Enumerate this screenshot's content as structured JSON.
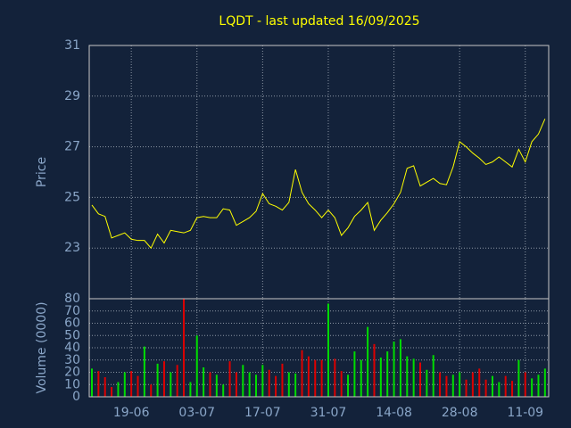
{
  "chart_data": {
    "type": "stock",
    "title": "LQDT - last updated 16/09/2025",
    "categories": [
      null,
      null,
      null,
      null,
      null,
      null,
      "19-06",
      null,
      null,
      null,
      null,
      null,
      null,
      null,
      null,
      null,
      "03-07",
      null,
      null,
      null,
      null,
      null,
      null,
      null,
      null,
      null,
      "17-07",
      null,
      null,
      null,
      null,
      null,
      null,
      null,
      null,
      null,
      "31-07",
      null,
      null,
      null,
      null,
      null,
      null,
      null,
      null,
      null,
      "14-08",
      null,
      null,
      null,
      null,
      null,
      null,
      null,
      null,
      null,
      "28-08",
      null,
      null,
      null,
      null,
      null,
      null,
      null,
      null,
      null,
      "11-09",
      null,
      null,
      null
    ],
    "price": {
      "color": "#ffff00",
      "values": [
        24.7,
        24.35,
        24.25,
        23.4,
        23.5,
        23.6,
        23.35,
        23.3,
        23.3,
        23.0,
        23.55,
        23.2,
        23.7,
        23.65,
        23.6,
        23.7,
        24.2,
        24.25,
        24.2,
        24.2,
        24.55,
        24.5,
        23.9,
        24.05,
        24.2,
        24.45,
        25.15,
        24.75,
        24.65,
        24.5,
        24.8,
        26.1,
        25.2,
        24.75,
        24.5,
        24.2,
        24.5,
        24.2,
        23.5,
        23.8,
        24.25,
        24.5,
        24.8,
        23.7,
        24.1,
        24.4,
        24.75,
        25.2,
        26.15,
        26.25,
        25.45,
        25.6,
        25.75,
        25.55,
        25.5,
        26.2,
        27.2,
        27.0,
        26.75,
        26.55,
        26.3,
        26.4,
        26.6,
        26.4,
        26.2,
        26.9,
        26.4,
        27.2,
        27.5,
        28.1
      ]
    },
    "ylabel": "Price",
    "ylim": [
      21,
      31
    ],
    "yticks": [
      23,
      25,
      27,
      29,
      31
    ],
    "volume": {
      "up_color": "#00dd00",
      "down_color": "#dd0000",
      "values": [
        23,
        21,
        16,
        8,
        12,
        20,
        21,
        17,
        41,
        10,
        27,
        29,
        20,
        26,
        80,
        12,
        50,
        24,
        20,
        18,
        10,
        29,
        20,
        26,
        20,
        18,
        26,
        22,
        17,
        27,
        20,
        19,
        38,
        33,
        30,
        30,
        76,
        31,
        21,
        18,
        37,
        30,
        57,
        43,
        32,
        37,
        45,
        47,
        33,
        31,
        28,
        22,
        34,
        20,
        17,
        18,
        20,
        14,
        20,
        23,
        14,
        17,
        12,
        17,
        13,
        30,
        20,
        15,
        18,
        23
      ]
    },
    "y2label": "Volume (0000)",
    "y2lim": [
      0,
      80
    ],
    "y2ticks": [
      0,
      10,
      20,
      30,
      40,
      50,
      60,
      70,
      80
    ],
    "grid": true
  }
}
